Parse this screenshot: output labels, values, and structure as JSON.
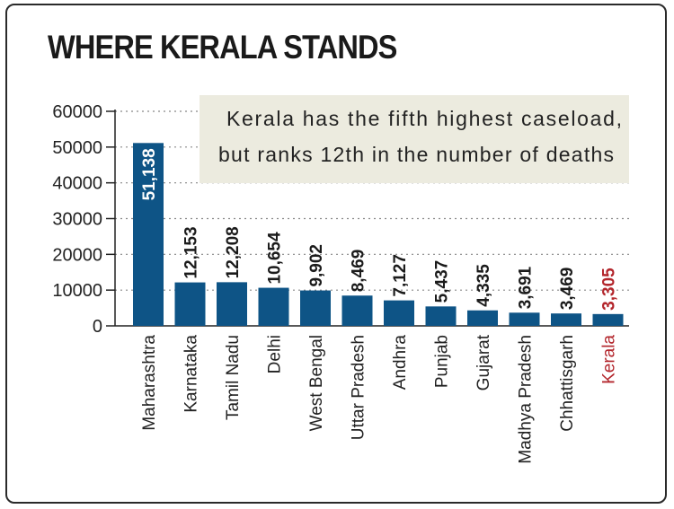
{
  "chart_data": {
    "type": "bar",
    "title": "WHERE KERALA STANDS",
    "annotation": [
      "Kerala has the fifth highest caseload,",
      "but ranks 12th in the number of deaths"
    ],
    "categories": [
      "Maharashtra",
      "Karnataka",
      "Tamil Nadu",
      "Delhi",
      "West Bengal",
      "Uttar Pradesh",
      "Andhra",
      "Punjab",
      "Gujarat",
      "Madhya Pradesh",
      "Chhattisgarh",
      "Kerala"
    ],
    "values": [
      51138,
      12153,
      12208,
      10654,
      9902,
      8469,
      7127,
      5437,
      4335,
      3691,
      3469,
      3305
    ],
    "value_labels": [
      "51,138",
      "12,153",
      "12,208",
      "10,654",
      "9,902",
      "8,469",
      "7,127",
      "5,437",
      "4,335",
      "3,691",
      "3,469",
      "3,305"
    ],
    "highlight": "Kerala",
    "yticks": [
      0,
      10000,
      20000,
      30000,
      40000,
      50000,
      60000
    ],
    "ytick_labels": [
      "0",
      "10000",
      "20000",
      "30000",
      "40000",
      "50000",
      "60000"
    ],
    "ylim": [
      0,
      60000
    ],
    "grid": "dotted-horizontal",
    "xlabel": "",
    "ylabel": ""
  },
  "colors": {
    "bar": "#0e5486",
    "highlight_label": "#b3262c",
    "note_background": "#ecebdf",
    "text": "#222222",
    "grid": "#888888",
    "value_label_on_bar": "#ffffff"
  }
}
